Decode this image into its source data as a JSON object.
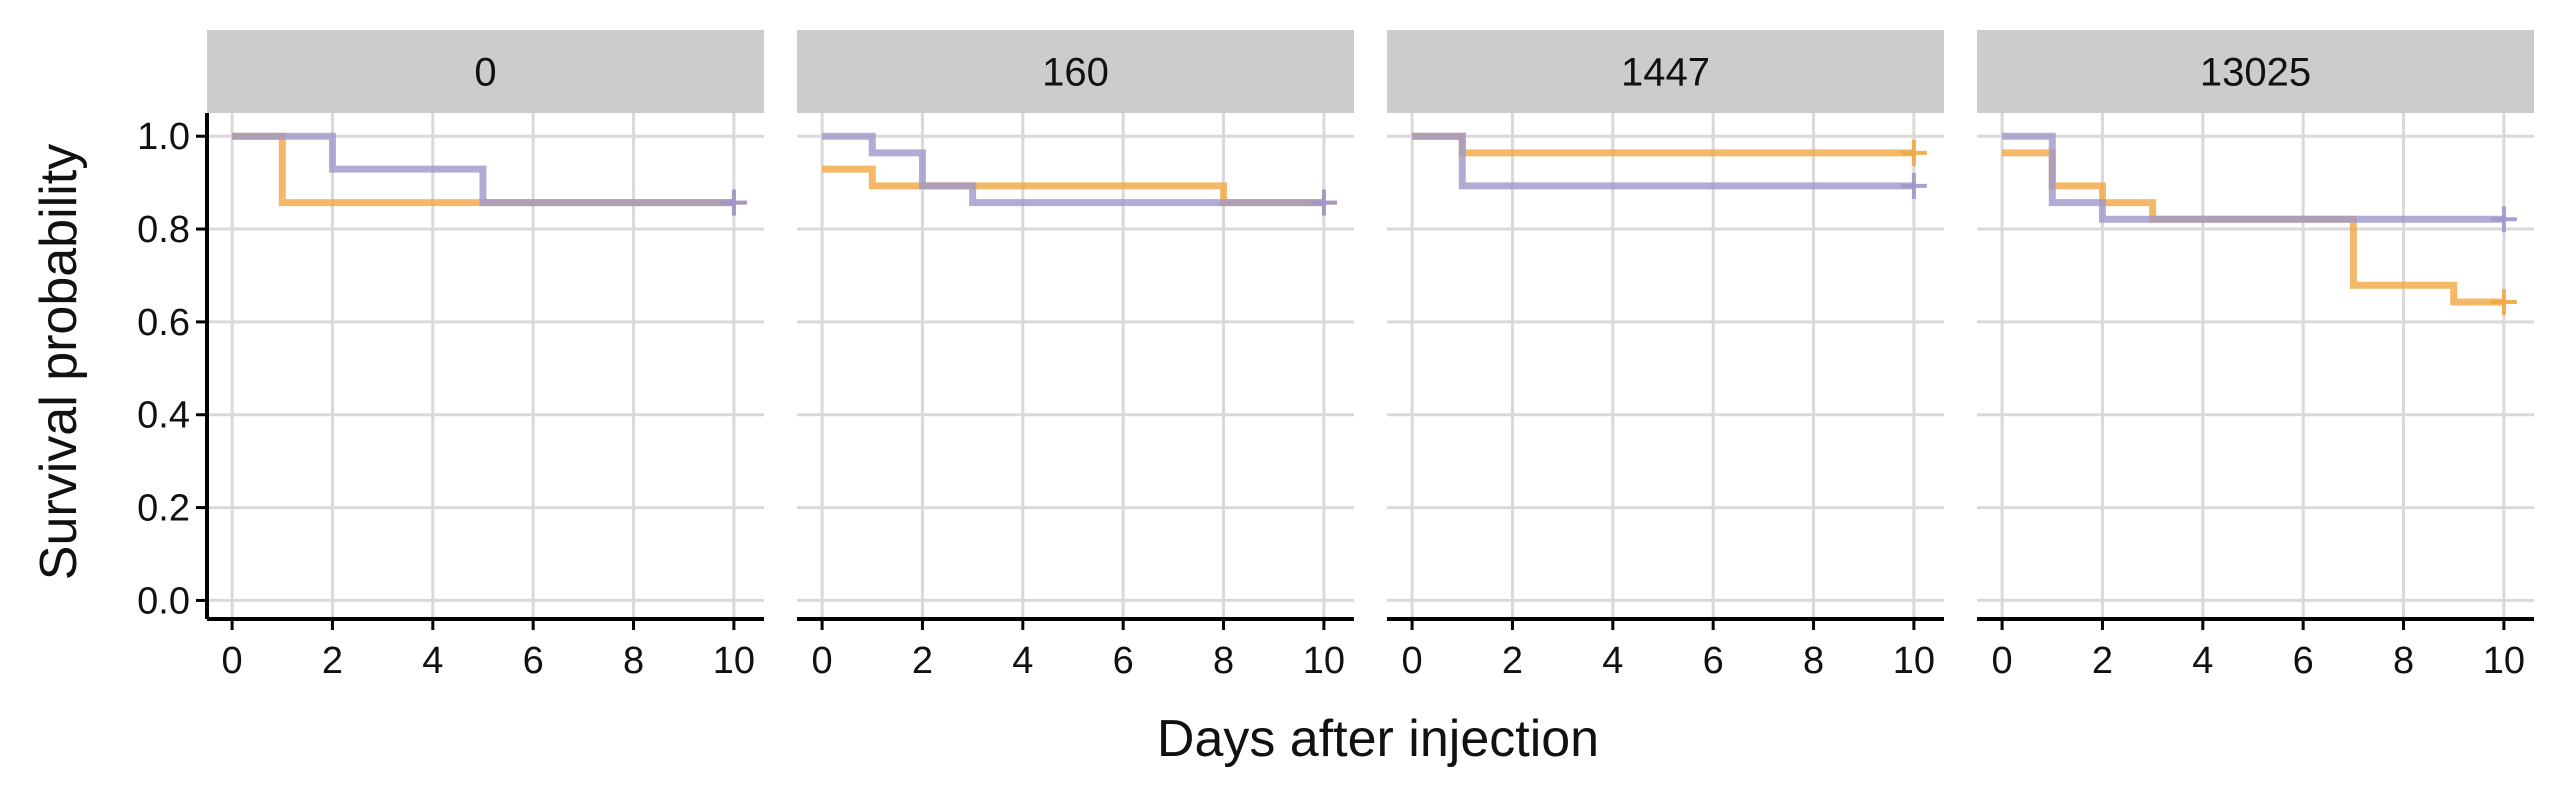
{
  "chart_data": {
    "type": "line",
    "xlabel": "Days after injection",
    "ylabel": "Survival probability",
    "xlim": [
      -0.5,
      10.6
    ],
    "ylim": [
      -0.04,
      1.05
    ],
    "xticks": [
      0,
      2,
      4,
      6,
      8,
      10
    ],
    "yticks": [
      0.0,
      0.2,
      0.4,
      0.6,
      0.8,
      1.0
    ],
    "ytick_labels": [
      "0.0",
      "0.2",
      "0.4",
      "0.6",
      "0.8",
      "1.0"
    ],
    "grid": true,
    "legend": "none",
    "series_colors": [
      "#f0a742",
      "#9d97cb"
    ],
    "panels": [
      {
        "label": "0",
        "series": [
          {
            "color": "#f0a742",
            "x": [
              0,
              1,
              10
            ],
            "y": [
              1.0,
              0.857,
              0.857
            ],
            "censor": [
              [
                10,
                0.857
              ]
            ]
          },
          {
            "color": "#9d97cb",
            "x": [
              0,
              2,
              5,
              10
            ],
            "y": [
              1.0,
              0.929,
              0.857,
              0.857
            ],
            "censor": [
              [
                10,
                0.857
              ]
            ]
          }
        ]
      },
      {
        "label": "160",
        "series": [
          {
            "color": "#f0a742",
            "x": [
              0,
              1,
              8,
              10
            ],
            "y": [
              0.929,
              0.893,
              0.857,
              0.857
            ],
            "censor": [
              [
                10,
                0.857
              ]
            ]
          },
          {
            "color": "#9d97cb",
            "x": [
              0,
              1,
              2,
              3,
              10
            ],
            "y": [
              1.0,
              0.964,
              0.893,
              0.857,
              0.857
            ],
            "censor": [
              [
                10,
                0.857
              ]
            ]
          }
        ]
      },
      {
        "label": "1447",
        "series": [
          {
            "color": "#f0a742",
            "x": [
              0,
              1,
              10
            ],
            "y": [
              1.0,
              0.964,
              0.964
            ],
            "censor": [
              [
                10,
                0.964
              ]
            ]
          },
          {
            "color": "#9d97cb",
            "x": [
              0,
              1,
              10
            ],
            "y": [
              1.0,
              0.893,
              0.893
            ],
            "censor": [
              [
                10,
                0.893
              ]
            ]
          }
        ]
      },
      {
        "label": "13025",
        "series": [
          {
            "color": "#f0a742",
            "x": [
              0,
              1,
              2,
              3,
              7,
              9,
              10
            ],
            "y": [
              0.964,
              0.893,
              0.857,
              0.821,
              0.679,
              0.643,
              0.643
            ],
            "censor": [
              [
                10,
                0.643
              ]
            ]
          },
          {
            "color": "#9d97cb",
            "x": [
              0,
              1,
              2,
              10
            ],
            "y": [
              1.0,
              0.857,
              0.821,
              0.821
            ],
            "censor": [
              [
                10,
                0.821
              ]
            ]
          }
        ]
      }
    ]
  }
}
